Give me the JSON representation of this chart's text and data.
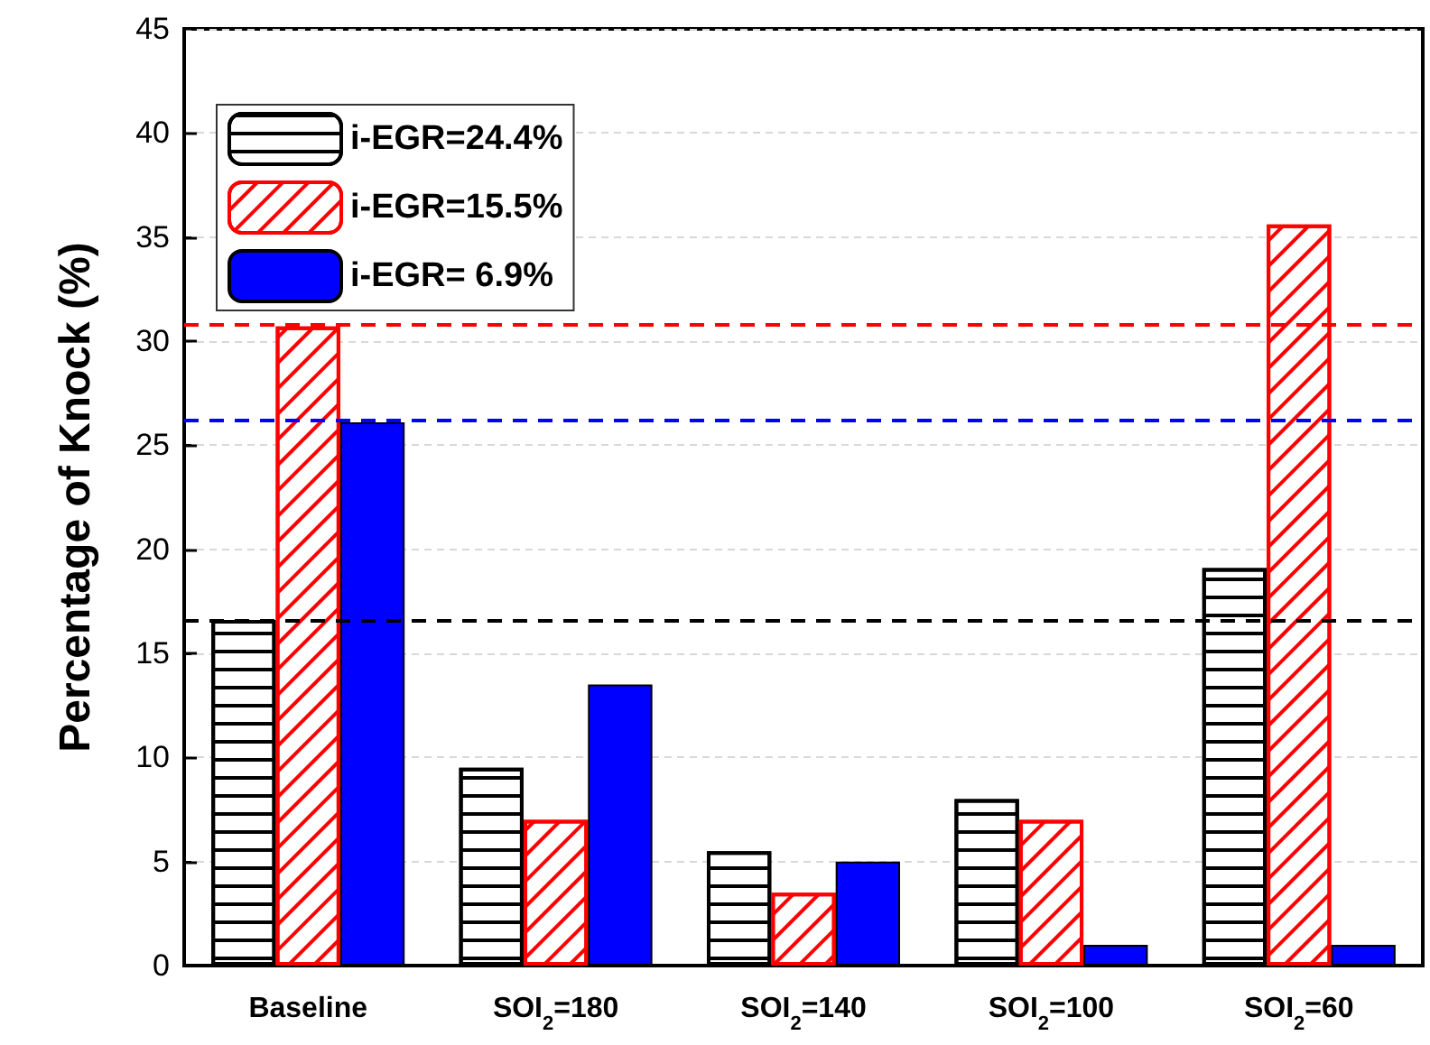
{
  "chart_data": {
    "type": "bar",
    "ylabel": "Percentage of Knock (%)",
    "categories": [
      "Baseline",
      "SOI$_{2}$=180",
      "SOI$_{2}$=140",
      "SOI$_{2}$=100",
      "SOI$_{2}$=60"
    ],
    "series": [
      {
        "name": "i-EGR=24.4%",
        "color": "#000000",
        "values": [
          16.6,
          9.5,
          5.5,
          8.0,
          19.1
        ]
      },
      {
        "name": "i-EGR=15.5%",
        "color": "#ff0000",
        "values": [
          30.7,
          7.0,
          3.5,
          7.0,
          35.6
        ]
      },
      {
        "name": "i-EGR= 6.9%",
        "color": "#0000ff",
        "values": [
          26.1,
          13.5,
          5.0,
          1.0,
          1.0
        ]
      }
    ],
    "ylim": [
      0,
      45
    ],
    "yticks": [
      0,
      5,
      10,
      15,
      20,
      25,
      30,
      35,
      40,
      45
    ],
    "grid": "y",
    "legend": "top left",
    "ref_lines": [
      {
        "axis": "y",
        "value": 16.6,
        "color": "#000000",
        "line_style": "dashed"
      },
      {
        "axis": "y",
        "value": 30.8,
        "color": "#ff0000",
        "line_style": "dashed"
      },
      {
        "axis": "y",
        "value": 26.2,
        "color": "#0000ff",
        "line_style": "dashed"
      }
    ]
  }
}
